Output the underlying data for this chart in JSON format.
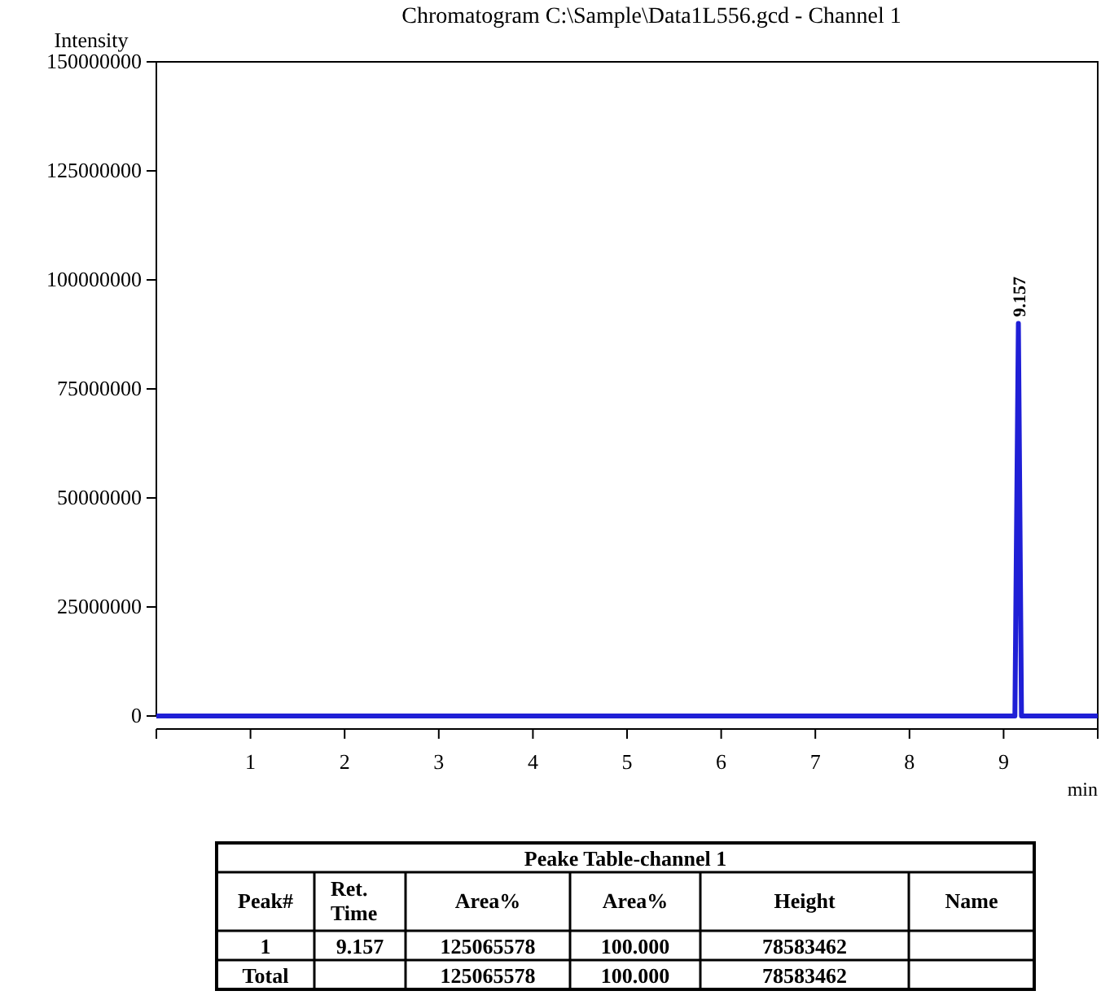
{
  "chart_data": [
    {
      "type": "line",
      "title": "Chromatogram C:\\Sample\\Data1L556.gcd - Channel 1",
      "xlabel": "min",
      "ylabel": "Intensity",
      "x": [
        0,
        9.12,
        9.157,
        9.19,
        10
      ],
      "series": [
        {
          "color": "#1f1fd6",
          "values": [
            0,
            0,
            90000000,
            0,
            0
          ]
        }
      ],
      "xlim": [
        0,
        10
      ],
      "xticks": [
        {
          "value": 0,
          "label": null
        },
        1,
        2,
        3,
        4,
        5,
        6,
        7,
        8,
        9,
        {
          "value": 10,
          "label": null
        }
      ],
      "ylim": [
        0,
        150000000
      ],
      "yticks": [
        0,
        25000000,
        50000000,
        75000000,
        100000000,
        125000000,
        150000000
      ],
      "annotations": [
        {
          "text": "9.157",
          "x": 9.157,
          "y": 90000000
        }
      ],
      "grid": false,
      "marker": "none",
      "line_style": "solid"
    },
    {
      "type": "other",
      "title": "Peake Table-channel 1",
      "categories": [
        "Peak#",
        "Ret. Time",
        "Area%",
        "Area%",
        "Height",
        "Name"
      ],
      "cell_labels": [
        [
          "1",
          "9.157",
          "125065578",
          "100.000",
          "78583462",
          null
        ],
        [
          "Total",
          null,
          "125065578",
          "100.000",
          "78583462",
          null
        ]
      ]
    }
  ]
}
